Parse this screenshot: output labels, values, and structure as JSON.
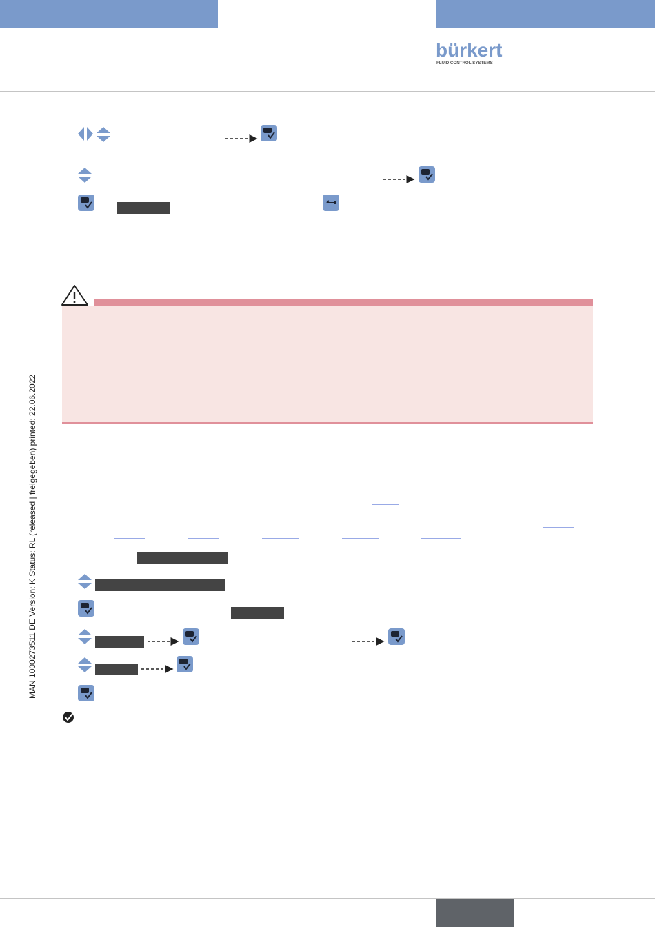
{
  "header": {
    "logo": "bürkert",
    "tagline": "FLUID CONTROL SYSTEMS"
  },
  "side_note": "MAN  1000273511  DE  Version: K  Status: RL (released | freigegeben)  printed: 22.06.2022"
}
